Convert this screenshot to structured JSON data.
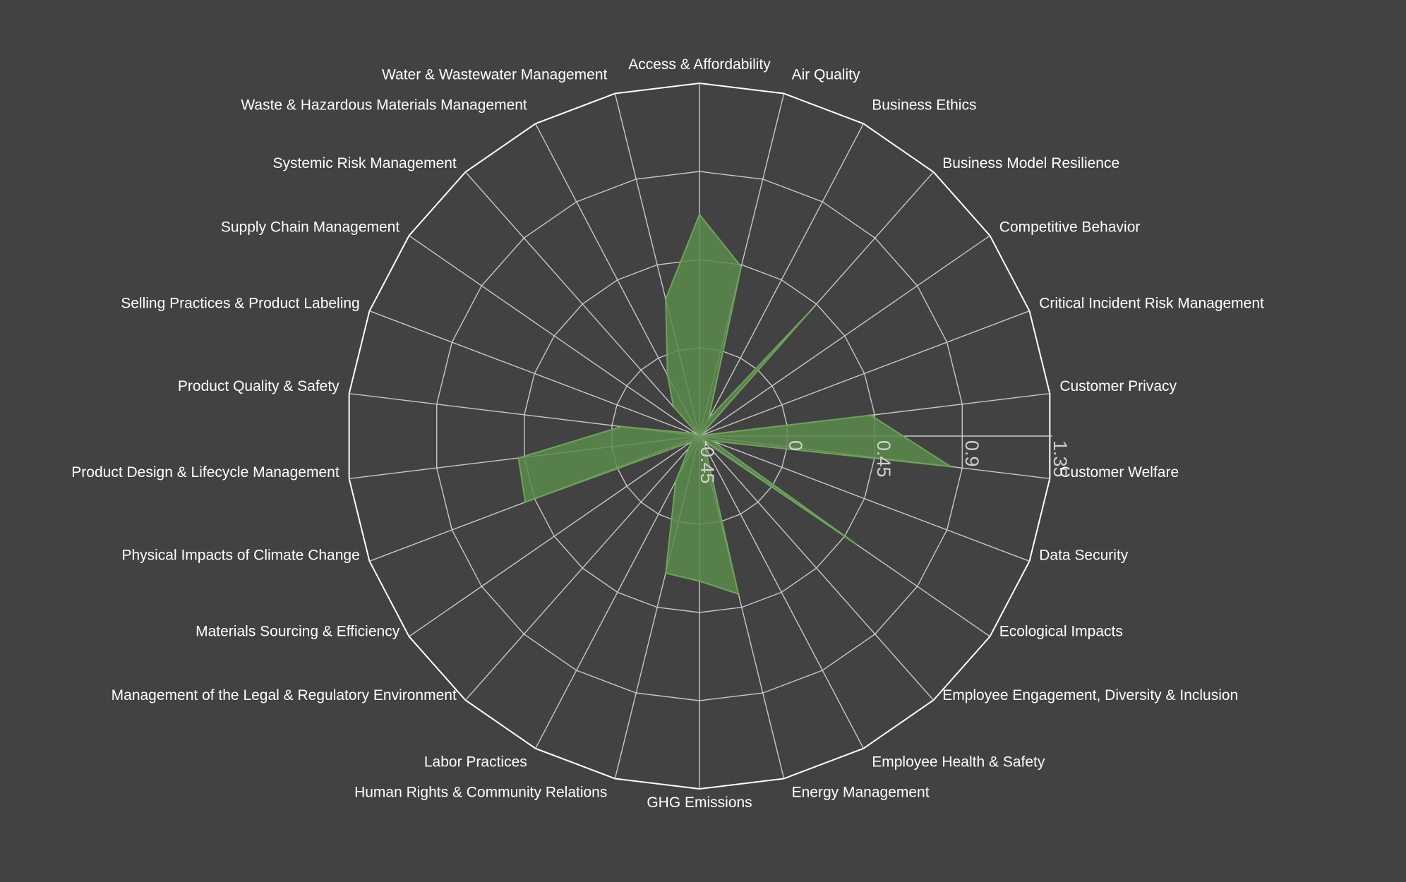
{
  "colors": {
    "background": "#424242",
    "outer_ring": "#ffffff",
    "grid": "#c8c8c8",
    "fill": "#5a8a4a",
    "stroke": "#6fa35c",
    "label": "#ffffff",
    "tick": "#cfcfcf"
  },
  "chart_data": {
    "type": "radar",
    "title": "",
    "categories": [
      "Access & Affordability",
      "Air Quality",
      "Business Ethics",
      "Business Model Resilience",
      "Competitive Behavior",
      "Critical Incident Risk Management",
      "Customer Privacy",
      "Customer Welfare",
      "Data Security",
      "Ecological Impacts",
      "Employee Engagement, Diversity & Inclusion",
      "Employee Health & Safety",
      "Energy Management",
      "GHG Emissions",
      "Human Rights & Community Relations",
      "Labor Practices",
      "Management of the Legal & Regulatory Environment",
      "Materials Sourcing & Efficiency",
      "Physical Impacts of Climate Change",
      "Product Design & Lifecycle Management",
      "Product Quality & Safety",
      "Selling Practices & Product Labeling",
      "Supply Chain Management",
      "Systemic Risk Management",
      "Waste & Hazardous Materials Management",
      "Water & Wastewater Management"
    ],
    "series": [
      {
        "values": [
          0.68,
          0.44,
          -0.35,
          0.4,
          -0.44,
          -0.44,
          0.43,
          0.84,
          -0.38,
          0.53,
          -0.42,
          -0.39,
          0.38,
          0.29,
          0.27,
          -0.19,
          -0.37,
          -0.4,
          0.5,
          0.48,
          -0.05,
          -0.41,
          -0.45,
          -0.25,
          -0.1,
          0.27
        ]
      }
    ],
    "radial_range": [
      -0.45,
      1.35
    ],
    "ticks": [
      -0.45,
      0,
      0.45,
      0.9,
      1.35
    ],
    "tick_labels": [
      "-0.45",
      "0",
      "0.45",
      "0.9",
      "1.35"
    ],
    "grid": true,
    "legend": "none"
  }
}
